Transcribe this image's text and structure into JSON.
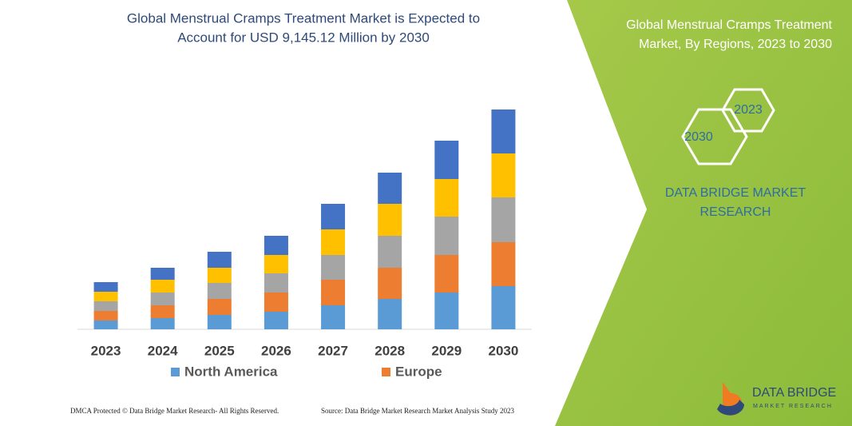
{
  "chart_data": {
    "type": "stacked_bar",
    "title": "Global Menstrual Cramps Treatment Market is Expected to",
    "subtitle": "Account for USD 9,145.12 Million by 2030",
    "categories": [
      "2023",
      "2024",
      "2025",
      "2026",
      "2027",
      "2028",
      "2029",
      "2030"
    ],
    "series": [
      {
        "name": "North America",
        "color": "#5b9bd5",
        "values": [
          11,
          14,
          18,
          22,
          30,
          38,
          46,
          54
        ]
      },
      {
        "name": "Europe",
        "color": "#ed7d31",
        "values": [
          12,
          16,
          20,
          24,
          32,
          39,
          47,
          55
        ]
      },
      {
        "color": "#a5a5a5",
        "values": [
          12,
          16,
          20,
          24,
          31,
          40,
          48,
          56
        ]
      },
      {
        "color": "#ffc000",
        "values": [
          12,
          16,
          19,
          23,
          32,
          40,
          47,
          55
        ]
      },
      {
        "color": "#4472c4",
        "values": [
          12,
          15,
          20,
          24,
          32,
          39,
          48,
          55
        ]
      }
    ],
    "ylim": [
      0,
      280
    ]
  },
  "side_panel": {
    "title_line1": "Global Menstrual Cramps Treatment",
    "title_line2": "Market, By Regions, 2023 to 2030",
    "hex_labels": [
      "2030",
      "2023"
    ],
    "brand_line1": "DATA BRIDGE MARKET",
    "brand_line2": "RESEARCH",
    "logo_line1": "DATA BRIDGE",
    "logo_line2": "MARKET RESEARCH"
  },
  "footer": {
    "left": "DMCA Protected © Data Bridge Market Research-  All Rights Reserved.",
    "right": "Source: Data Bridge Market Research  Market Analysis Study 2023"
  }
}
